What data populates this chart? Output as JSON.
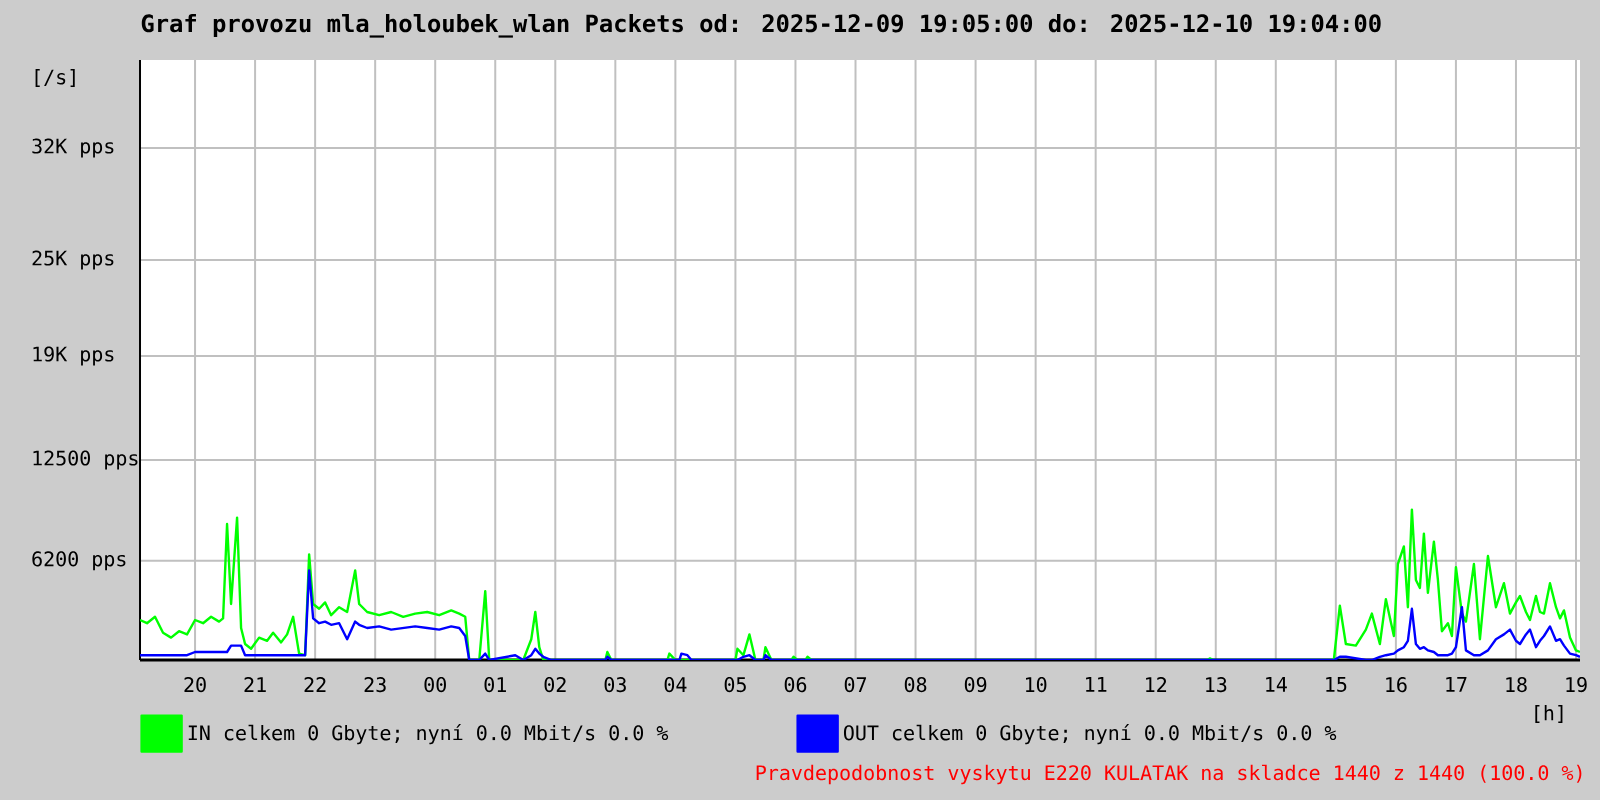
{
  "chart_data": {
    "type": "line",
    "title": "Graf provozu mla_holoubek_wlan Packets od: 2025-12-09 19:05:00 do: 2025-12-10 19:04:00",
    "xlabel": "[h]",
    "ylabel": "[/s]",
    "annotations": [
      "Pravdepodobnost vyskytu E220 KULATAK na skladce 1440 z 1440 (100.0 %)"
    ],
    "x": [
      "2025-12-09T19:05",
      "2025-12-09T19:12",
      "2025-12-09T19:20",
      "2025-12-09T19:28",
      "2025-12-09T19:36",
      "2025-12-09T19:44",
      "2025-12-09T19:52",
      "2025-12-09T20:00",
      "2025-12-09T20:08",
      "2025-12-09T20:16",
      "2025-12-09T20:24",
      "2025-12-09T20:28",
      "2025-12-09T20:32",
      "2025-12-09T20:36",
      "2025-12-09T20:42",
      "2025-12-09T20:46",
      "2025-12-09T20:50",
      "2025-12-09T20:56",
      "2025-12-09T21:04",
      "2025-12-09T21:12",
      "2025-12-09T21:18",
      "2025-12-09T21:26",
      "2025-12-09T21:32",
      "2025-12-09T21:38",
      "2025-12-09T21:44",
      "2025-12-09T21:50",
      "2025-12-09T21:54",
      "2025-12-09T21:58",
      "2025-12-09T22:04",
      "2025-12-09T22:10",
      "2025-12-09T22:16",
      "2025-12-09T22:24",
      "2025-12-09T22:32",
      "2025-12-09T22:40",
      "2025-12-09T22:44",
      "2025-12-09T22:52",
      "2025-12-09T23:04",
      "2025-12-09T23:16",
      "2025-12-09T23:28",
      "2025-12-09T23:40",
      "2025-12-09T23:52",
      "2025-12-10T00:04",
      "2025-12-10T00:16",
      "2025-12-10T00:24",
      "2025-12-10T00:30",
      "2025-12-10T00:34",
      "2025-12-10T00:44",
      "2025-12-10T00:50",
      "2025-12-10T00:54",
      "2025-12-10T01:20",
      "2025-12-10T01:28",
      "2025-12-10T01:36",
      "2025-12-10T01:40",
      "2025-12-10T01:44",
      "2025-12-10T01:48",
      "2025-12-10T01:56",
      "2025-12-10T02:50",
      "2025-12-10T02:52",
      "2025-12-10T02:56",
      "2025-12-10T03:52",
      "2025-12-10T03:54",
      "2025-12-10T04:00",
      "2025-12-10T04:04",
      "2025-12-10T04:06",
      "2025-12-10T04:12",
      "2025-12-10T04:16",
      "2025-12-10T05:00",
      "2025-12-10T05:02",
      "2025-12-10T05:08",
      "2025-12-10T05:14",
      "2025-12-10T05:20",
      "2025-12-10T05:28",
      "2025-12-10T05:30",
      "2025-12-10T05:36",
      "2025-12-10T05:56",
      "2025-12-10T05:58",
      "2025-12-10T06:02",
      "2025-12-10T06:10",
      "2025-12-10T06:12",
      "2025-12-10T06:16",
      "2025-12-10T12:52",
      "2025-12-10T12:54",
      "2025-12-10T12:58",
      "2025-12-10T14:58",
      "2025-12-10T15:04",
      "2025-12-10T15:10",
      "2025-12-10T15:20",
      "2025-12-10T15:30",
      "2025-12-10T15:36",
      "2025-12-10T15:44",
      "2025-12-10T15:50",
      "2025-12-10T15:58",
      "2025-12-10T16:02",
      "2025-12-10T16:08",
      "2025-12-10T16:12",
      "2025-12-10T16:16",
      "2025-12-10T16:20",
      "2025-12-10T16:24",
      "2025-12-10T16:28",
      "2025-12-10T16:32",
      "2025-12-10T16:38",
      "2025-12-10T16:42",
      "2025-12-10T16:46",
      "2025-12-10T16:52",
      "2025-12-10T16:56",
      "2025-12-10T17:00",
      "2025-12-10T17:06",
      "2025-12-10T17:10",
      "2025-12-10T17:18",
      "2025-12-10T17:24",
      "2025-12-10T17:32",
      "2025-12-10T17:40",
      "2025-12-10T17:48",
      "2025-12-10T17:54",
      "2025-12-10T18:00",
      "2025-12-10T18:04",
      "2025-12-10T18:10",
      "2025-12-10T18:14",
      "2025-12-10T18:20",
      "2025-12-10T18:24",
      "2025-12-10T18:28",
      "2025-12-10T18:34",
      "2025-12-10T18:40",
      "2025-12-10T18:44",
      "2025-12-10T18:48",
      "2025-12-10T18:54",
      "2025-12-10T19:00",
      "2025-12-10T19:04"
    ],
    "series": [
      {
        "name": "IN celkem 0 Gbyte; nyní 0.0 Mbit/s 0.0 %",
        "color": "#00ff00",
        "values": [
          2500,
          2300,
          2700,
          1700,
          1400,
          1800,
          1600,
          2500,
          2300,
          2700,
          2400,
          2600,
          8500,
          3500,
          8900,
          2000,
          1000,
          700,
          1400,
          1200,
          1700,
          1100,
          1600,
          2700,
          400,
          300,
          6600,
          3500,
          3200,
          3600,
          2800,
          3300,
          3000,
          5600,
          3500,
          3000,
          2800,
          3000,
          2700,
          2900,
          3000,
          2800,
          3100,
          2900,
          2700,
          0,
          0,
          4300,
          0,
          0,
          0,
          1300,
          3000,
          800,
          0,
          0,
          0,
          500,
          0,
          0,
          400,
          0,
          0,
          0,
          0,
          0,
          0,
          700,
          300,
          1600,
          0,
          0,
          800,
          0,
          0,
          200,
          0,
          0,
          200,
          0,
          0,
          100,
          0,
          0,
          3400,
          1000,
          900,
          1900,
          2900,
          1000,
          3800,
          1500,
          6000,
          7100,
          3300,
          9400,
          5000,
          4500,
          7900,
          4200,
          7400,
          5000,
          1800,
          2300,
          1500,
          5800,
          2900,
          2400,
          6000,
          1300,
          6500,
          3300,
          4800,
          2900,
          3600,
          4000,
          3000,
          2500,
          4000,
          3000,
          2900,
          4800,
          3300,
          2600,
          3100,
          1400,
          600,
          500
        ]
      },
      {
        "name": "OUT celkem 0 Gbyte; nyní 0.0 Mbit/s 0.0 %",
        "color": "#0000ff",
        "values": [
          300,
          300,
          300,
          300,
          300,
          300,
          300,
          500,
          500,
          500,
          500,
          500,
          500,
          900,
          900,
          900,
          300,
          300,
          300,
          300,
          300,
          300,
          300,
          300,
          300,
          300,
          5600,
          2600,
          2300,
          2400,
          2200,
          2300,
          1300,
          2400,
          2200,
          2000,
          2100,
          1900,
          2000,
          2100,
          2000,
          1900,
          2100,
          2000,
          1500,
          0,
          0,
          400,
          0,
          300,
          0,
          300,
          700,
          400,
          200,
          0,
          0,
          200,
          0,
          0,
          0,
          0,
          0,
          400,
          300,
          0,
          0,
          0,
          200,
          300,
          0,
          0,
          300,
          0,
          0,
          0,
          0,
          0,
          0,
          0,
          0,
          0,
          0,
          0,
          200,
          200,
          100,
          0,
          0,
          200,
          300,
          400,
          600,
          800,
          1200,
          3200,
          1000,
          700,
          800,
          600,
          500,
          300,
          300,
          300,
          400,
          800,
          3300,
          600,
          300,
          300,
          600,
          1300,
          1600,
          1900,
          1200,
          1000,
          1600,
          1900,
          800,
          1200,
          1500,
          2100,
          1200,
          1300,
          900,
          400,
          300,
          200
        ]
      }
    ],
    "xlim": [
      "2025-12-09T19:05",
      "2025-12-10T19:04"
    ],
    "ylim": [
      0,
      37500
    ],
    "xticks": [
      {
        "value": "2025-12-09T20:00",
        "label": "20"
      },
      {
        "value": "2025-12-09T21:00",
        "label": "21"
      },
      {
        "value": "2025-12-09T22:00",
        "label": "22"
      },
      {
        "value": "2025-12-09T23:00",
        "label": "23"
      },
      {
        "value": "2025-12-10T00:00",
        "label": "00"
      },
      {
        "value": "2025-12-10T01:00",
        "label": "01"
      },
      {
        "value": "2025-12-10T02:00",
        "label": "02"
      },
      {
        "value": "2025-12-10T03:00",
        "label": "03"
      },
      {
        "value": "2025-12-10T04:00",
        "label": "04"
      },
      {
        "value": "2025-12-10T05:00",
        "label": "05"
      },
      {
        "value": "2025-12-10T06:00",
        "label": "06"
      },
      {
        "value": "2025-12-10T07:00",
        "label": "07"
      },
      {
        "value": "2025-12-10T08:00",
        "label": "08"
      },
      {
        "value": "2025-12-10T09:00",
        "label": "09"
      },
      {
        "value": "2025-12-10T10:00",
        "label": "10"
      },
      {
        "value": "2025-12-10T11:00",
        "label": "11"
      },
      {
        "value": "2025-12-10T12:00",
        "label": "12"
      },
      {
        "value": "2025-12-10T13:00",
        "label": "13"
      },
      {
        "value": "2025-12-10T14:00",
        "label": "14"
      },
      {
        "value": "2025-12-10T15:00",
        "label": "15"
      },
      {
        "value": "2025-12-10T16:00",
        "label": "16"
      },
      {
        "value": "2025-12-10T17:00",
        "label": "17"
      },
      {
        "value": "2025-12-10T18:00",
        "label": "18"
      },
      {
        "value": "2025-12-10T19:00",
        "label": "19"
      }
    ],
    "yticks": [
      {
        "value": 6200,
        "label": "6200 pps"
      },
      {
        "value": 12500,
        "label": "12500 pps"
      },
      {
        "value": 19000,
        "label": "19K pps"
      },
      {
        "value": 25000,
        "label": "25K pps"
      },
      {
        "value": 32000,
        "label": "32K pps"
      }
    ],
    "grid": true,
    "legend": "bottom"
  }
}
